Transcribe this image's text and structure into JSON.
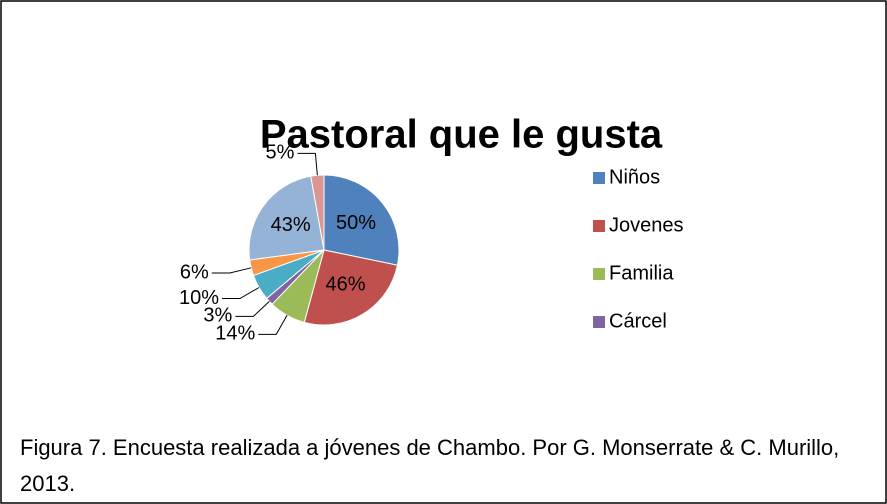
{
  "chart_data": {
    "type": "pie",
    "title": "Pastoral que le gusta",
    "categories": [
      "Niños",
      "Jovenes",
      "Familia",
      "Cárcel",
      null,
      null,
      null,
      null
    ],
    "values": [
      50,
      46,
      14,
      3,
      10,
      6,
      43,
      5
    ],
    "value_labels": [
      "50%",
      "46%",
      "14%",
      "3%",
      "10%",
      "6%",
      "43%",
      "5%"
    ],
    "colors": [
      "#4f81bd",
      "#c0504d",
      "#9bbb59",
      "#8064a2",
      "#4bacc6",
      "#f79646",
      "#95b3d7",
      "#d99694"
    ],
    "legend": "right"
  },
  "caption": "Figura 7. Encuesta realizada a jóvenes de Chambo. Por G. Monserrate & C. Murillo, 2013."
}
